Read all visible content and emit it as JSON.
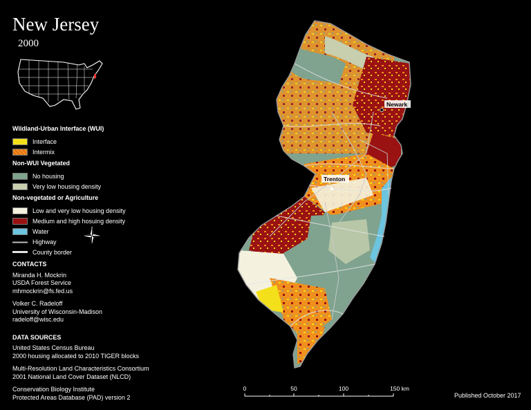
{
  "title": "New Jersey",
  "year": "2000",
  "colors": {
    "interface": "#f4e01a",
    "intermix": "#f0901e",
    "no_housing": "#7fa38e",
    "very_low": "#c7cfae",
    "low_very_low": "#f4f2df",
    "med_high": "#9a1212",
    "water": "#6cc4de",
    "highway": "#c9c9c9",
    "county_border": "#e4e4e4"
  },
  "legend": {
    "wui_header": "Wildland-Urban Interface (WUI)",
    "interface": "Interface",
    "intermix": "Intermix",
    "nonwui_header": "Non-WUI Vegetated",
    "no_housing": "No housing",
    "very_low": "Very low housing density",
    "nonveg_header": "Non-vegetated or Agriculture",
    "low_very_low": "Low and very low housing density",
    "med_high": "Medium and high hosuing density",
    "water": "Water",
    "highway": "Highway",
    "county_border": "County border"
  },
  "north_arrow": {
    "n": "N",
    "s": "S",
    "e": "E",
    "w": "W"
  },
  "contacts": {
    "header": "CONTACTS",
    "p1_name": "Miranda H. Mockrin",
    "p1_org": "USDA Forest Service",
    "p1_email": "mhmockrin@fs.fed.us",
    "p2_name": "Volker C. Radeloff",
    "p2_org": "University of Wisconsin-Madison",
    "p2_email": "radeloff@wisc.edu"
  },
  "sources": {
    "header": "DATA SOURCES",
    "s1_a": "United States Census Bureau",
    "s1_b": "2000 housing allocated to 2010 TIGER blocks",
    "s2_a": "Multi-Resolution Land Characteristics Consortium",
    "s2_b": "2001 National Land Cover Dataset (NLCD)",
    "s3_a": "Conservation Biology Institute",
    "s3_b": "Protected Areas Database (PAD) version 2"
  },
  "cities": {
    "newark": "Newark",
    "trenton": "Trenton"
  },
  "scale": {
    "t0": "0",
    "t1": "50",
    "t2": "100",
    "t3": "150 km"
  },
  "published": "Published October 2017"
}
